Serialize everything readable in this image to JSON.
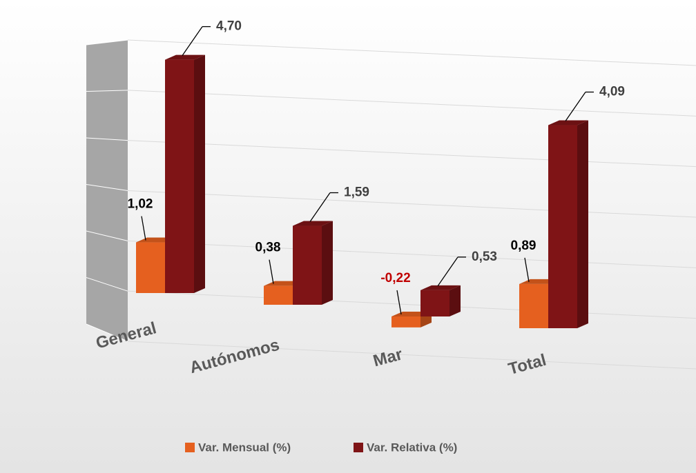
{
  "chart_data": {
    "type": "bar3d",
    "categories": [
      "General",
      "Autónomos",
      "Mar",
      "Total"
    ],
    "series": [
      {
        "name": "Var. Mensual (%)",
        "color": "#e5601f",
        "values": [
          1.02,
          0.38,
          -0.22,
          0.89
        ],
        "value_labels": [
          "1,02",
          "0,38",
          "-0,22",
          "0,89"
        ]
      },
      {
        "name": "Var. Relativa (%)",
        "color": "#7f1416",
        "values": [
          4.7,
          1.59,
          0.53,
          4.09
        ],
        "value_labels": [
          "4,70",
          "1,59",
          "0,53",
          "4,09"
        ]
      }
    ],
    "ylim": [
      -1,
      5
    ],
    "yticks": [
      -1,
      0,
      1,
      2,
      3,
      4,
      5
    ],
    "grid": true,
    "negative_label_color": "#c00000",
    "legend": "bottom"
  }
}
